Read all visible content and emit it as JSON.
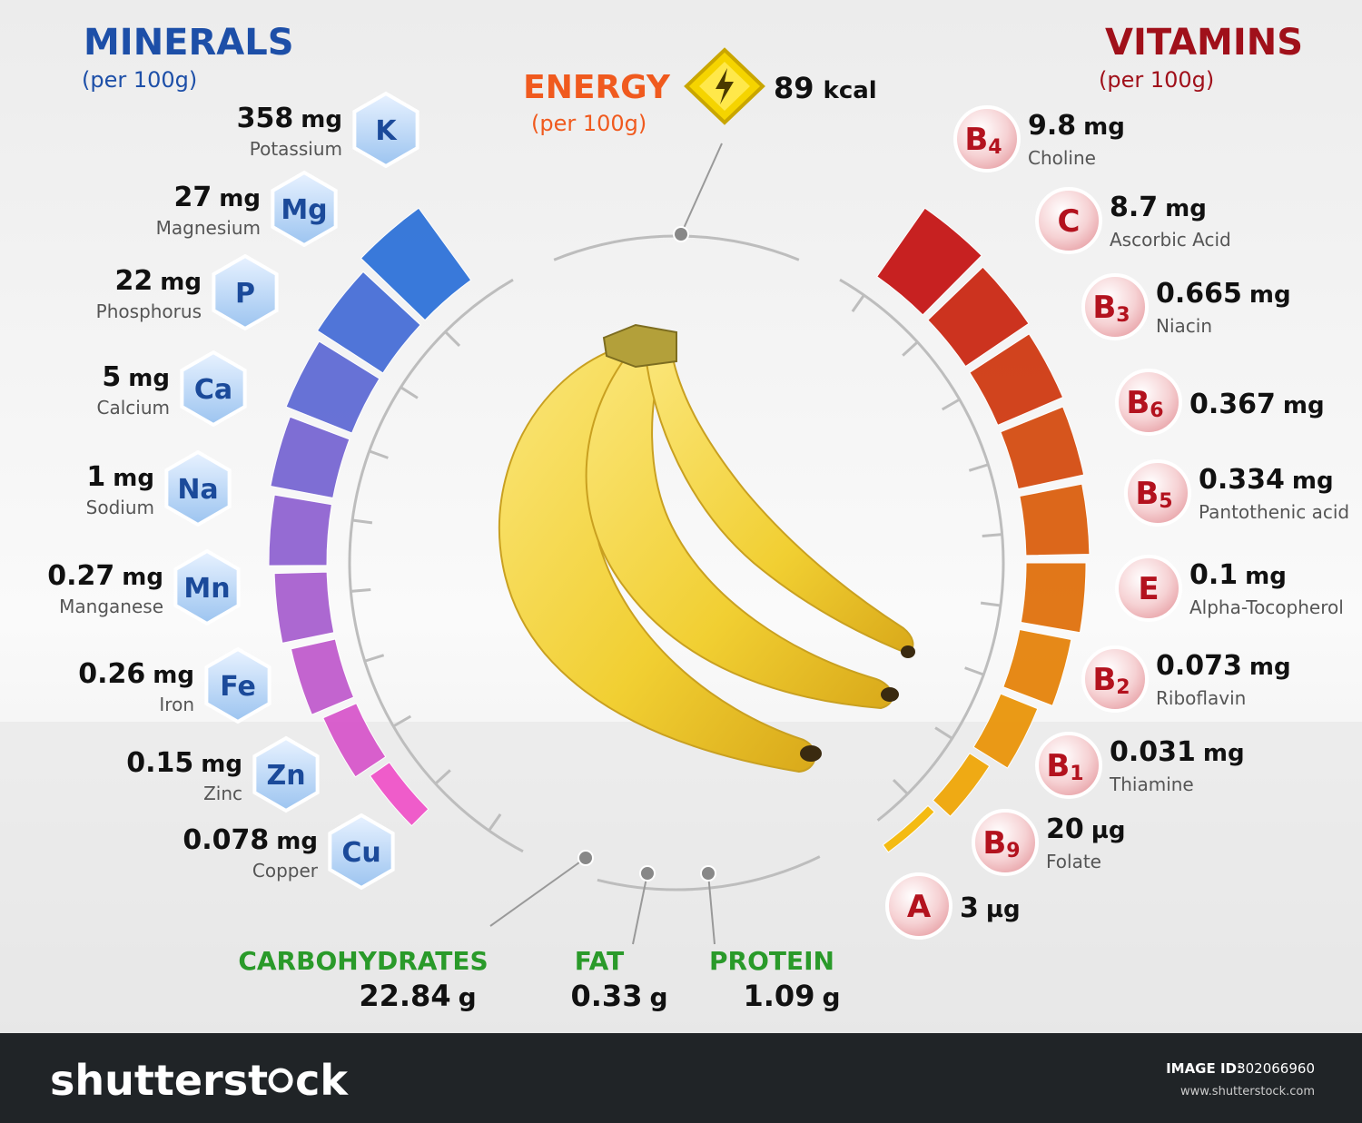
{
  "minerals": {
    "title": "MINERALS",
    "subtitle": "(per 100g)",
    "items": [
      {
        "amount": "358",
        "unit": "mg",
        "name": "Potassium",
        "symbol": "K"
      },
      {
        "amount": "27",
        "unit": "mg",
        "name": "Magnesium",
        "symbol": "Mg"
      },
      {
        "amount": "22",
        "unit": "mg",
        "name": "Phosphorus",
        "symbol": "P"
      },
      {
        "amount": "5",
        "unit": "mg",
        "name": "Calcium",
        "symbol": "Ca"
      },
      {
        "amount": "1",
        "unit": "mg",
        "name": "Sodium",
        "symbol": "Na"
      },
      {
        "amount": "0.27",
        "unit": "mg",
        "name": "Manganese",
        "symbol": "Mn"
      },
      {
        "amount": "0.26",
        "unit": "mg",
        "name": "Iron",
        "symbol": "Fe"
      },
      {
        "amount": "0.15",
        "unit": "mg",
        "name": "Zinc",
        "symbol": "Zn"
      },
      {
        "amount": "0.078",
        "unit": "mg",
        "name": "Copper",
        "symbol": "Cu"
      }
    ]
  },
  "vitamins": {
    "title": "VITAMINS",
    "subtitle": "(per 100g)",
    "items": [
      {
        "amount": "9.8",
        "unit": "mg",
        "name": "Choline",
        "symbol": "B",
        "sub": "4"
      },
      {
        "amount": "8.7",
        "unit": "mg",
        "name": "Ascorbic Acid",
        "symbol": "C"
      },
      {
        "amount": "0.665",
        "unit": "mg",
        "name": "Niacin",
        "symbol": "B",
        "sub": "3"
      },
      {
        "amount": "0.367",
        "unit": "mg",
        "symbol": "B",
        "sub": "6"
      },
      {
        "amount": "0.334",
        "unit": "mg",
        "name": "Pantothenic acid",
        "symbol": "B",
        "sub": "5"
      },
      {
        "amount": "0.1",
        "unit": "mg",
        "name": "Alpha-Tocopherol",
        "symbol": "E"
      },
      {
        "amount": "0.073",
        "unit": "mg",
        "name": "Riboflavin",
        "symbol": "B",
        "sub": "2"
      },
      {
        "amount": "0.031",
        "unit": "mg",
        "name": "Thiamine",
        "symbol": "B",
        "sub": "1"
      },
      {
        "amount": "20",
        "unit": "µg",
        "name": "Folate",
        "symbol": "B",
        "sub": "9"
      },
      {
        "amount": "3",
        "unit": "µg",
        "symbol": "A"
      }
    ]
  },
  "energy": {
    "title": "ENERGY",
    "subtitle": "(per 100g)",
    "amount": "89",
    "unit": "kcal"
  },
  "macronutrients": [
    {
      "name": "CARBOHYDRATES",
      "amount": "22.84",
      "unit": "g"
    },
    {
      "name": "FAT",
      "amount": "0.33",
      "unit": "g"
    },
    {
      "name": "PROTEIN",
      "amount": "1.09",
      "unit": "g"
    }
  ],
  "footer": {
    "brand_start": "shutterst",
    "brand_end": "ck",
    "image_id_label": "IMAGE ID:",
    "image_id": "302066960",
    "url": "www.shutterstock.com"
  }
}
